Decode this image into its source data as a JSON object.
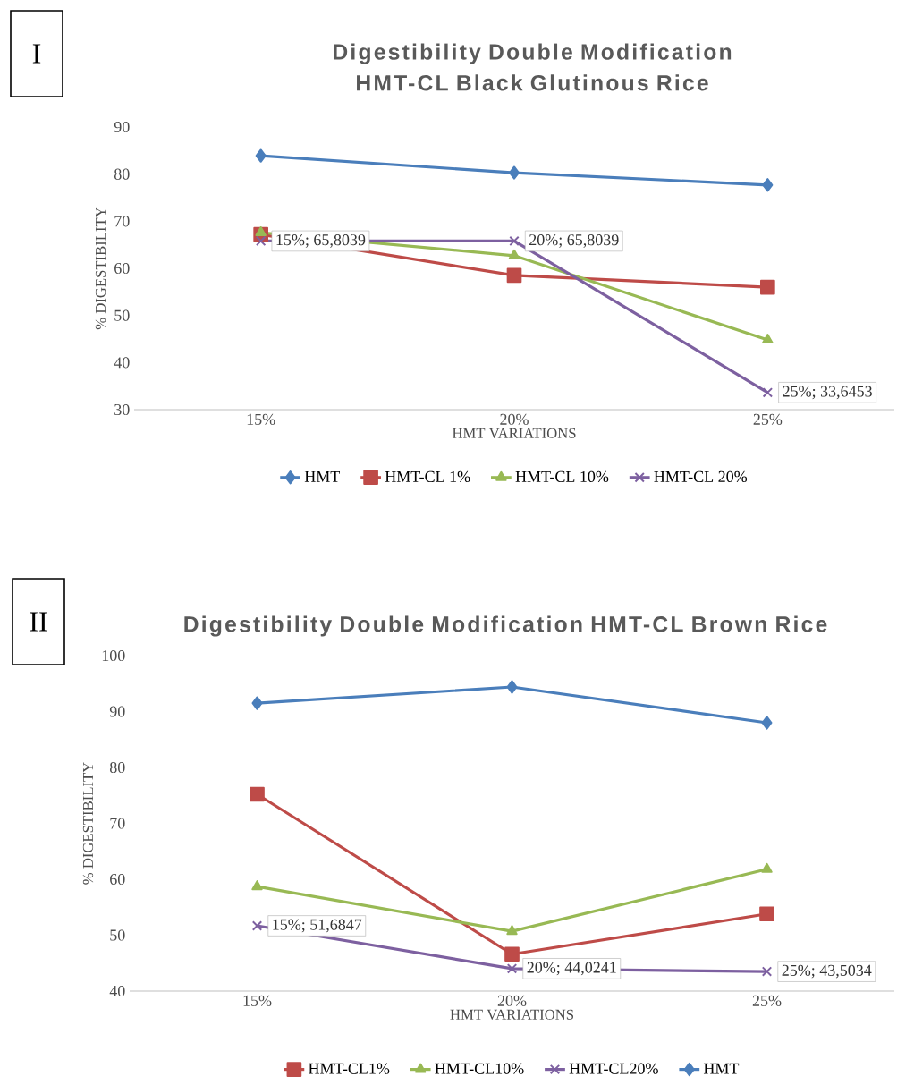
{
  "chart_data": [
    {
      "type": "line",
      "title": "Digestibility Double Modification HMT-CL Black Glutinous Rice",
      "xlabel": "HMT VARIATIONS",
      "ylabel": "% DIGESTIBILITY",
      "categories": [
        "15%",
        "20%",
        "25%"
      ],
      "ylim": [
        30,
        90
      ],
      "yticks": [
        30,
        40,
        50,
        60,
        70,
        80,
        90
      ],
      "legend": "bottom",
      "annotations": [
        "I"
      ],
      "series": [
        {
          "name": "HMT",
          "color": "#4a7ebb",
          "marker": "diamond",
          "values": [
            83.9,
            80.3,
            77.7
          ]
        },
        {
          "name": "HMT-CL 1%",
          "color": "#be4b48",
          "marker": "square",
          "values": [
            67.2,
            58.5,
            56.0
          ]
        },
        {
          "name": "HMT-CL 10%",
          "color": "#98b954",
          "marker": "triangle",
          "values": [
            67.6,
            62.7,
            44.8
          ]
        },
        {
          "name": "HMT-CL 20%",
          "color": "#7d60a0",
          "marker": "cross",
          "values": [
            65.8039,
            65.8039,
            33.6453
          ],
          "value_labels": [
            "15%; 65,8039",
            "20%; 65,8039",
            "25%; 33,6453"
          ]
        }
      ]
    },
    {
      "type": "line",
      "title": "Digestibility Double Modification HMT-CL Brown Rice",
      "xlabel": "HMT VARIATIONS",
      "ylabel": "% DIGESTIBILITY",
      "categories": [
        "15%",
        "20%",
        "25%"
      ],
      "ylim": [
        40,
        100
      ],
      "yticks": [
        40,
        50,
        60,
        70,
        80,
        90,
        100
      ],
      "legend": "bottom",
      "annotations": [
        "II"
      ],
      "series": [
        {
          "name": "HMT-CL1%",
          "color": "#be4b48",
          "marker": "square",
          "values": [
            75.2,
            46.6,
            53.8
          ]
        },
        {
          "name": "HMT-CL10%",
          "color": "#98b954",
          "marker": "triangle",
          "values": [
            58.7,
            50.7,
            61.8
          ]
        },
        {
          "name": "HMT-CL20%",
          "color": "#7d60a0",
          "marker": "cross",
          "values": [
            51.6847,
            44.0241,
            43.5034
          ],
          "value_labels": [
            "15%; 51,6847",
            "20%; 44,0241",
            "25%; 43,5034"
          ]
        },
        {
          "name": "HMT",
          "color": "#4a7ebb",
          "marker": "diamond",
          "values": [
            91.5,
            94.4,
            88.0
          ]
        }
      ]
    }
  ]
}
